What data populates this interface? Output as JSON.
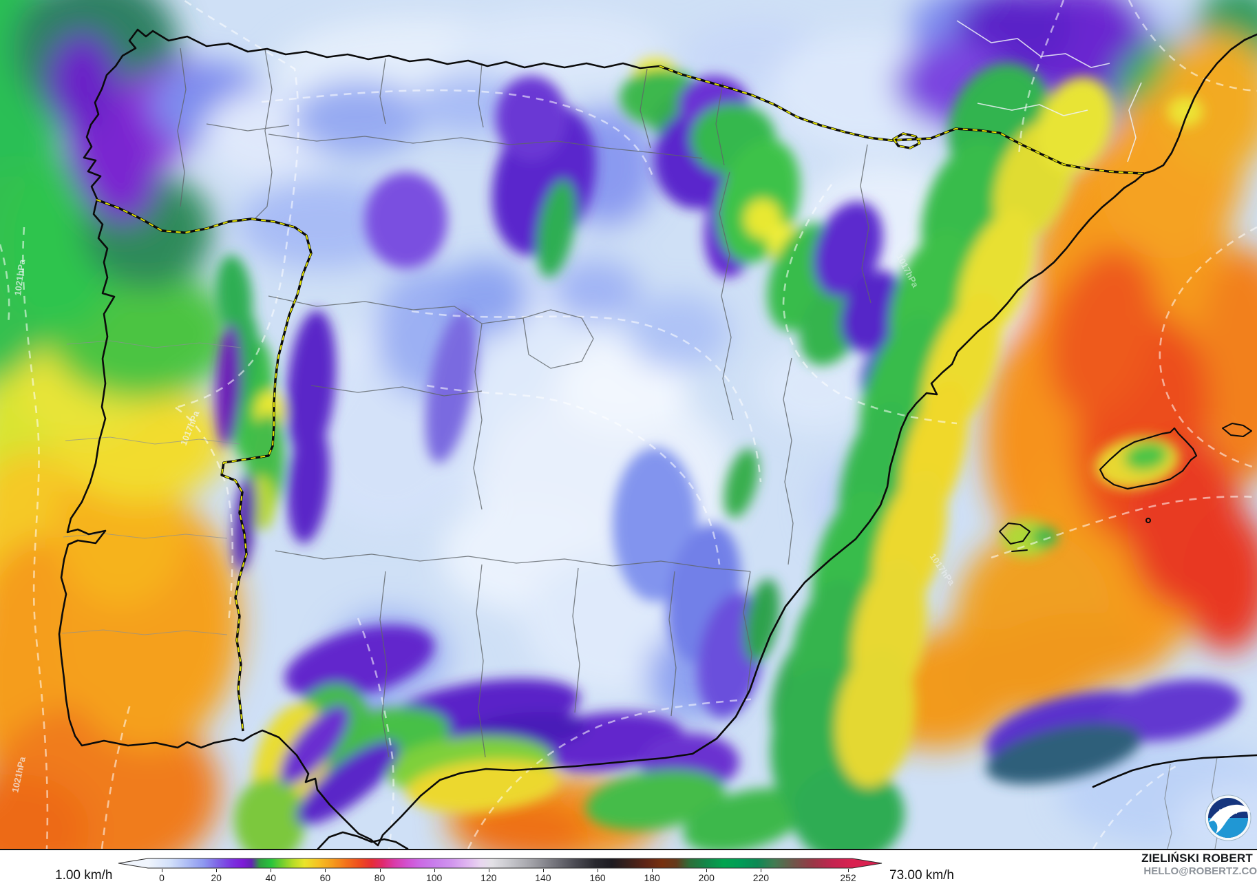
{
  "legend": {
    "min_label": "1.00 km/h",
    "max_label": "73.00 km/h",
    "unit": "km/h",
    "scale_min": 0,
    "scale_max": 252,
    "ticks": [
      0,
      20,
      40,
      60,
      80,
      100,
      120,
      140,
      160,
      180,
      200,
      220,
      252
    ],
    "gradient_stops": [
      {
        "v": 0,
        "color": "#f0f5fd"
      },
      {
        "v": 8,
        "color": "#d2e0fa"
      },
      {
        "v": 14,
        "color": "#aebdf5"
      },
      {
        "v": 20,
        "color": "#8d97f0"
      },
      {
        "v": 25,
        "color": "#7e63e6"
      },
      {
        "v": 30,
        "color": "#7b33e0"
      },
      {
        "v": 34,
        "color": "#7d1bd6"
      },
      {
        "v": 37,
        "color": "#6423b4"
      },
      {
        "v": 40,
        "color": "#2f9e40"
      },
      {
        "v": 44,
        "color": "#27c43c"
      },
      {
        "v": 48,
        "color": "#71ce2e"
      },
      {
        "v": 52,
        "color": "#b8dc28"
      },
      {
        "v": 56,
        "color": "#e9e42b"
      },
      {
        "v": 61,
        "color": "#f6c124"
      },
      {
        "v": 66,
        "color": "#f59c1d"
      },
      {
        "v": 71,
        "color": "#f3711b"
      },
      {
        "v": 76,
        "color": "#ee4a1f"
      },
      {
        "v": 80,
        "color": "#e62e36"
      },
      {
        "v": 84,
        "color": "#e02a6e"
      },
      {
        "v": 88,
        "color": "#da3ba8"
      },
      {
        "v": 93,
        "color": "#d252d2"
      },
      {
        "v": 97,
        "color": "#cc68e4"
      },
      {
        "v": 102,
        "color": "#c87ceb"
      },
      {
        "v": 108,
        "color": "#d092ee"
      },
      {
        "v": 114,
        "color": "#dfb4f1"
      },
      {
        "v": 119,
        "color": "#e9d6f0"
      },
      {
        "v": 123,
        "color": "#e3e1e6"
      },
      {
        "v": 129,
        "color": "#c9c9ce"
      },
      {
        "v": 137,
        "color": "#a3a3a9"
      },
      {
        "v": 145,
        "color": "#77777e"
      },
      {
        "v": 153,
        "color": "#4a4a52"
      },
      {
        "v": 160,
        "color": "#29292f"
      },
      {
        "v": 166,
        "color": "#1d1b21"
      },
      {
        "v": 172,
        "color": "#3a211c"
      },
      {
        "v": 178,
        "color": "#5d2517"
      },
      {
        "v": 184,
        "color": "#76300f"
      },
      {
        "v": 189,
        "color": "#64391c"
      },
      {
        "v": 194,
        "color": "#2c6f39"
      },
      {
        "v": 200,
        "color": "#12884a"
      },
      {
        "v": 206,
        "color": "#02a44f"
      },
      {
        "v": 212,
        "color": "#019c56"
      },
      {
        "v": 218,
        "color": "#0d8954"
      },
      {
        "v": 224,
        "color": "#417c52"
      },
      {
        "v": 231,
        "color": "#6f564a"
      },
      {
        "v": 238,
        "color": "#993746"
      },
      {
        "v": 245,
        "color": "#c32450"
      },
      {
        "v": 252,
        "color": "#d92150"
      }
    ]
  },
  "attribution": {
    "author": "ZIELIŃSKI ROBERT",
    "contact": "HELLO@ROBERTZ.CO"
  },
  "logo": {
    "text": "NOAA"
  },
  "isobar_labels": [
    {
      "text": "1021hPa"
    },
    {
      "text": "1021hPa"
    },
    {
      "text": "1017hPa"
    },
    {
      "text": "1017hPa"
    },
    {
      "text": "1017hPa"
    }
  ],
  "colors": {
    "sea_base": "#cfe0f6",
    "coastline": "#0b0b0b",
    "country_border_dash": "#e6e600",
    "admin_border": "#5f6569",
    "isobar_dash": "#ffffff"
  }
}
